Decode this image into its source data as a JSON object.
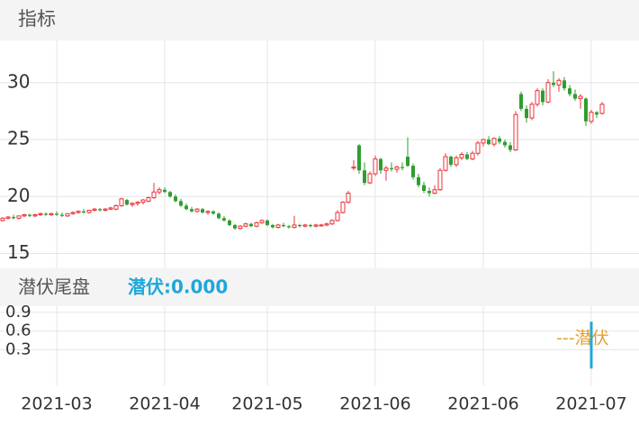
{
  "chart_data": {
    "type": "candlestick",
    "header": "指标",
    "indicator_title": "潜伏尾盘",
    "indicator_value": "潜伏:0.000",
    "indicator_legend": "---潜伏",
    "up_color": "#e8333a",
    "down_color": "#2f9e2f",
    "ylim": [
      13.7,
      33.7
    ],
    "yticks": [
      15,
      20,
      25,
      30
    ],
    "xticks": [
      {
        "value": 10,
        "label": "2021-03"
      },
      {
        "value": 30,
        "label": "2021-04"
      },
      {
        "value": 49,
        "label": "2021-05"
      },
      {
        "value": 69,
        "label": "2021-06"
      },
      {
        "value": 89,
        "label": "2021-06"
      },
      {
        "value": 109,
        "label": "2021-07"
      }
    ],
    "ohlc": [
      [
        17.9,
        18.2,
        17.8,
        18.1
      ],
      [
        18.1,
        18.3,
        18.0,
        18.2
      ],
      [
        18.2,
        18.4,
        18.0,
        18.1
      ],
      [
        18.1,
        18.3,
        18.0,
        18.3
      ],
      [
        18.3,
        18.5,
        18.2,
        18.4
      ],
      [
        18.4,
        18.5,
        18.2,
        18.3
      ],
      [
        18.3,
        18.5,
        18.2,
        18.4
      ],
      [
        18.4,
        18.6,
        18.3,
        18.5
      ],
      [
        18.5,
        18.6,
        18.3,
        18.4
      ],
      [
        18.4,
        18.6,
        18.3,
        18.5
      ],
      [
        18.5,
        18.7,
        18.3,
        18.4
      ],
      [
        18.4,
        18.6,
        18.2,
        18.3
      ],
      [
        18.3,
        18.5,
        18.2,
        18.5
      ],
      [
        18.5,
        18.7,
        18.4,
        18.6
      ],
      [
        18.6,
        18.8,
        18.5,
        18.7
      ],
      [
        18.7,
        18.9,
        18.5,
        18.6
      ],
      [
        18.6,
        18.8,
        18.5,
        18.8
      ],
      [
        18.8,
        19.0,
        18.7,
        18.9
      ],
      [
        18.9,
        19.0,
        18.7,
        18.8
      ],
      [
        18.8,
        19.0,
        18.7,
        18.9
      ],
      [
        18.9,
        19.1,
        18.8,
        19.0
      ],
      [
        18.9,
        19.3,
        18.8,
        19.2
      ],
      [
        19.2,
        19.9,
        19.1,
        19.8
      ],
      [
        19.7,
        19.8,
        19.2,
        19.3
      ],
      [
        19.3,
        19.5,
        19.1,
        19.4
      ],
      [
        19.4,
        19.6,
        19.2,
        19.5
      ],
      [
        19.5,
        19.8,
        19.3,
        19.7
      ],
      [
        19.6,
        20.0,
        19.5,
        19.9
      ],
      [
        19.9,
        21.2,
        19.8,
        20.4
      ],
      [
        20.4,
        20.8,
        20.2,
        20.6
      ],
      [
        20.6,
        20.8,
        20.3,
        20.4
      ],
      [
        20.4,
        20.5,
        19.9,
        20.0
      ],
      [
        20.0,
        20.2,
        19.5,
        19.6
      ],
      [
        19.6,
        19.8,
        19.1,
        19.2
      ],
      [
        19.2,
        19.4,
        18.8,
        18.9
      ],
      [
        18.9,
        19.1,
        18.6,
        18.7
      ],
      [
        18.7,
        19.0,
        18.6,
        18.9
      ],
      [
        18.9,
        19.0,
        18.5,
        18.6
      ],
      [
        18.6,
        18.8,
        18.4,
        18.7
      ],
      [
        18.7,
        18.8,
        18.4,
        18.5
      ],
      [
        18.5,
        18.6,
        18.0,
        18.1
      ],
      [
        18.1,
        18.3,
        17.8,
        17.9
      ],
      [
        17.9,
        18.0,
        17.4,
        17.5
      ],
      [
        17.5,
        17.6,
        17.1,
        17.2
      ],
      [
        17.2,
        17.5,
        17.1,
        17.4
      ],
      [
        17.4,
        17.7,
        17.3,
        17.6
      ],
      [
        17.6,
        17.7,
        17.3,
        17.4
      ],
      [
        17.4,
        17.8,
        17.3,
        17.7
      ],
      [
        17.7,
        18.0,
        17.6,
        17.9
      ],
      [
        17.9,
        18.0,
        17.4,
        17.5
      ],
      [
        17.5,
        17.6,
        17.2,
        17.3
      ],
      [
        17.3,
        17.6,
        17.2,
        17.5
      ],
      [
        17.5,
        17.7,
        17.3,
        17.4
      ],
      [
        17.4,
        17.5,
        17.2,
        17.3
      ],
      [
        17.3,
        18.3,
        17.2,
        17.5
      ],
      [
        17.5,
        17.6,
        17.3,
        17.4
      ],
      [
        17.4,
        17.6,
        17.3,
        17.5
      ],
      [
        17.5,
        17.6,
        17.3,
        17.4
      ],
      [
        17.4,
        17.6,
        17.3,
        17.5
      ],
      [
        17.5,
        17.6,
        17.4,
        17.5
      ],
      [
        17.5,
        17.7,
        17.4,
        17.6
      ],
      [
        17.6,
        18.0,
        17.5,
        17.9
      ],
      [
        17.9,
        18.8,
        17.8,
        18.6
      ],
      [
        18.6,
        19.6,
        18.5,
        19.5
      ],
      [
        19.5,
        20.5,
        19.4,
        20.3
      ],
      [
        22.5,
        23.2,
        22.3,
        22.6
      ],
      [
        24.5,
        24.6,
        22.0,
        22.3
      ],
      [
        22.3,
        23.0,
        21.0,
        21.2
      ],
      [
        21.2,
        22.2,
        21.1,
        22.0
      ],
      [
        22.0,
        23.6,
        21.8,
        23.3
      ],
      [
        23.3,
        23.4,
        22.0,
        22.3
      ],
      [
        22.3,
        22.7,
        21.4,
        22.5
      ],
      [
        22.5,
        23.0,
        22.2,
        22.4
      ],
      [
        22.4,
        22.7,
        22.1,
        22.6
      ],
      [
        22.6,
        23.0,
        22.3,
        22.5
      ],
      [
        23.5,
        25.2,
        22.6,
        22.7
      ],
      [
        22.7,
        22.9,
        21.5,
        21.7
      ],
      [
        21.7,
        22.0,
        20.8,
        21.0
      ],
      [
        21.0,
        21.3,
        20.3,
        20.5
      ],
      [
        20.5,
        20.8,
        20.0,
        20.3
      ],
      [
        20.3,
        21.0,
        20.2,
        20.6
      ],
      [
        20.6,
        22.5,
        20.5,
        22.3
      ],
      [
        22.3,
        23.8,
        22.2,
        23.5
      ],
      [
        23.5,
        23.6,
        22.6,
        22.8
      ],
      [
        22.8,
        23.6,
        22.6,
        23.4
      ],
      [
        23.4,
        23.9,
        23.2,
        23.7
      ],
      [
        23.7,
        23.9,
        23.2,
        23.3
      ],
      [
        23.3,
        24.0,
        23.2,
        23.8
      ],
      [
        23.8,
        24.9,
        23.6,
        24.7
      ],
      [
        24.7,
        25.1,
        24.4,
        25.0
      ],
      [
        25.0,
        25.3,
        24.5,
        24.6
      ],
      [
        24.6,
        25.2,
        24.4,
        25.1
      ],
      [
        25.1,
        25.3,
        24.6,
        24.8
      ],
      [
        24.8,
        25.0,
        24.3,
        24.5
      ],
      [
        24.5,
        24.8,
        23.9,
        24.1
      ],
      [
        24.1,
        27.5,
        24.0,
        27.2
      ],
      [
        29.0,
        29.2,
        27.5,
        27.7
      ],
      [
        27.7,
        28.0,
        26.5,
        26.9
      ],
      [
        26.9,
        28.3,
        26.7,
        28.1
      ],
      [
        28.1,
        29.5,
        27.9,
        29.3
      ],
      [
        29.3,
        29.5,
        28.0,
        28.3
      ],
      [
        28.3,
        30.3,
        28.2,
        30.0
      ],
      [
        30.0,
        31.0,
        29.6,
        29.8
      ],
      [
        29.8,
        30.4,
        29.2,
        30.2
      ],
      [
        30.2,
        30.5,
        29.3,
        29.5
      ],
      [
        29.5,
        29.8,
        28.8,
        29.0
      ],
      [
        29.0,
        29.4,
        28.4,
        28.6
      ],
      [
        28.6,
        29.0,
        27.7,
        28.8
      ],
      [
        28.6,
        28.7,
        26.2,
        26.6
      ],
      [
        26.6,
        27.6,
        26.4,
        27.4
      ],
      [
        27.4,
        27.5,
        26.9,
        27.2
      ],
      [
        27.3,
        28.3,
        27.2,
        28.1
      ]
    ],
    "indicator": {
      "color": "#1ea7d9",
      "legend_color": "#e0a030",
      "ylim": [
        -0.27,
        1.0
      ],
      "yticks": [
        0.3,
        0.6,
        0.9
      ],
      "values": [
        0,
        0,
        0,
        0,
        0,
        0,
        0,
        0,
        0,
        0,
        0,
        0,
        0,
        0,
        0,
        0,
        0,
        0,
        0,
        0,
        0,
        0,
        0,
        0,
        0,
        0,
        0,
        0,
        0,
        0,
        0,
        0,
        0,
        0,
        0,
        0,
        0,
        0,
        0,
        0,
        0,
        0,
        0,
        0,
        0,
        0,
        0,
        0,
        0,
        0,
        0,
        0,
        0,
        0,
        0,
        0,
        0,
        0,
        0,
        0,
        0,
        0,
        0,
        0,
        0,
        0,
        0,
        0,
        0,
        0,
        0,
        0,
        0,
        0,
        0,
        0,
        0,
        0,
        0,
        0,
        0,
        0,
        0,
        0,
        0,
        0,
        0,
        0,
        0,
        0,
        0,
        0,
        0,
        0,
        0,
        0,
        0,
        0,
        0,
        0,
        0,
        0,
        0,
        0,
        0,
        0,
        0,
        0,
        0,
        0.75,
        0,
        0
      ]
    }
  }
}
